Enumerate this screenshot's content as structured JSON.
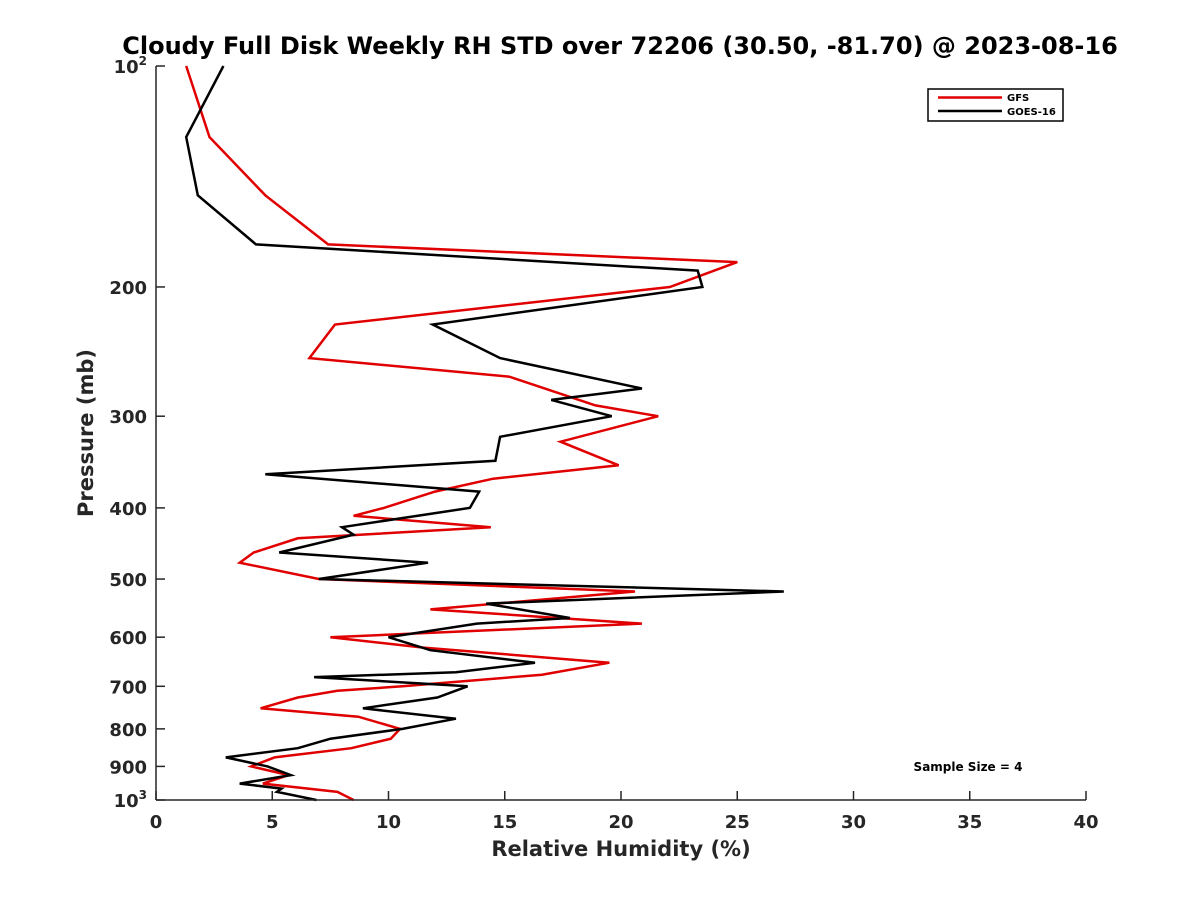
{
  "chart_data": {
    "type": "line",
    "title": "Cloudy Full Disk Weekly RH STD over 72206 (30.50, -81.70) @ 2023-08-16",
    "xlabel": "Relative Humidity (%)",
    "ylabel": "Pressure (mb)",
    "xlim": [
      0,
      40
    ],
    "ylim": [
      100,
      1000
    ],
    "yscale": "log",
    "yreversed": true,
    "x_ticks": [
      0,
      5,
      10,
      15,
      20,
      25,
      30,
      35,
      40
    ],
    "y_ticks": [
      {
        "value": 100,
        "base": "10",
        "exp": "2"
      },
      {
        "value": 200,
        "label": "200"
      },
      {
        "value": 300,
        "label": "300"
      },
      {
        "value": 400,
        "label": "400"
      },
      {
        "value": 500,
        "label": "500"
      },
      {
        "value": 600,
        "label": "600"
      },
      {
        "value": 700,
        "label": "700"
      },
      {
        "value": 800,
        "label": "800"
      },
      {
        "value": 900,
        "label": "900"
      },
      {
        "value": 1000,
        "base": "10",
        "exp": "3"
      }
    ],
    "legend_position": "top-right",
    "annotation": "Sample Size = 4",
    "series": [
      {
        "name": "GFS",
        "color": "#e00000",
        "points": [
          [
            1.3,
            100
          ],
          [
            2.3,
            125
          ],
          [
            4.7,
            150
          ],
          [
            7.4,
            175
          ],
          [
            25.0,
            185
          ],
          [
            22.1,
            200
          ],
          [
            7.7,
            225
          ],
          [
            6.6,
            250
          ],
          [
            15.2,
            265
          ],
          [
            18.9,
            290
          ],
          [
            21.6,
            300
          ],
          [
            17.4,
            325
          ],
          [
            19.9,
            350
          ],
          [
            14.5,
            365
          ],
          [
            12.0,
            380
          ],
          [
            9.8,
            400
          ],
          [
            8.5,
            410
          ],
          [
            14.4,
            425
          ],
          [
            6.1,
            440
          ],
          [
            4.2,
            460
          ],
          [
            3.6,
            475
          ],
          [
            7.0,
            500
          ],
          [
            20.6,
            520
          ],
          [
            11.8,
            550
          ],
          [
            20.9,
            575
          ],
          [
            7.5,
            600
          ],
          [
            11.5,
            620
          ],
          [
            19.5,
            650
          ],
          [
            16.6,
            675
          ],
          [
            10.6,
            700
          ],
          [
            7.8,
            710
          ],
          [
            6.1,
            725
          ],
          [
            4.5,
            750
          ],
          [
            8.7,
            770
          ],
          [
            10.5,
            800
          ],
          [
            10.1,
            825
          ],
          [
            8.4,
            850
          ],
          [
            5.1,
            875
          ],
          [
            4.1,
            900
          ],
          [
            5.7,
            925
          ],
          [
            4.6,
            950
          ],
          [
            7.8,
            975
          ],
          [
            8.5,
            1000
          ]
        ]
      },
      {
        "name": "GOES-16",
        "color": "#000000",
        "points": [
          [
            2.9,
            100
          ],
          [
            1.3,
            125
          ],
          [
            1.8,
            150
          ],
          [
            4.3,
            175
          ],
          [
            23.3,
            190
          ],
          [
            23.5,
            200
          ],
          [
            11.9,
            225
          ],
          [
            14.8,
            250
          ],
          [
            20.9,
            275
          ],
          [
            17.0,
            285
          ],
          [
            19.6,
            300
          ],
          [
            14.8,
            320
          ],
          [
            14.6,
            345
          ],
          [
            4.7,
            360
          ],
          [
            13.9,
            380
          ],
          [
            13.5,
            400
          ],
          [
            8.0,
            425
          ],
          [
            8.5,
            435
          ],
          [
            5.3,
            460
          ],
          [
            11.7,
            475
          ],
          [
            7.0,
            500
          ],
          [
            27.0,
            520
          ],
          [
            14.2,
            540
          ],
          [
            17.8,
            565
          ],
          [
            13.8,
            575
          ],
          [
            10.0,
            600
          ],
          [
            11.8,
            625
          ],
          [
            16.3,
            650
          ],
          [
            12.9,
            670
          ],
          [
            6.8,
            680
          ],
          [
            13.4,
            700
          ],
          [
            12.1,
            725
          ],
          [
            8.9,
            750
          ],
          [
            12.9,
            775
          ],
          [
            10.6,
            800
          ],
          [
            7.5,
            825
          ],
          [
            6.1,
            850
          ],
          [
            3.0,
            875
          ],
          [
            4.8,
            900
          ],
          [
            5.8,
            925
          ],
          [
            3.6,
            950
          ],
          [
            5.4,
            965
          ],
          [
            5.2,
            975
          ],
          [
            6.9,
            1000
          ]
        ]
      }
    ]
  }
}
